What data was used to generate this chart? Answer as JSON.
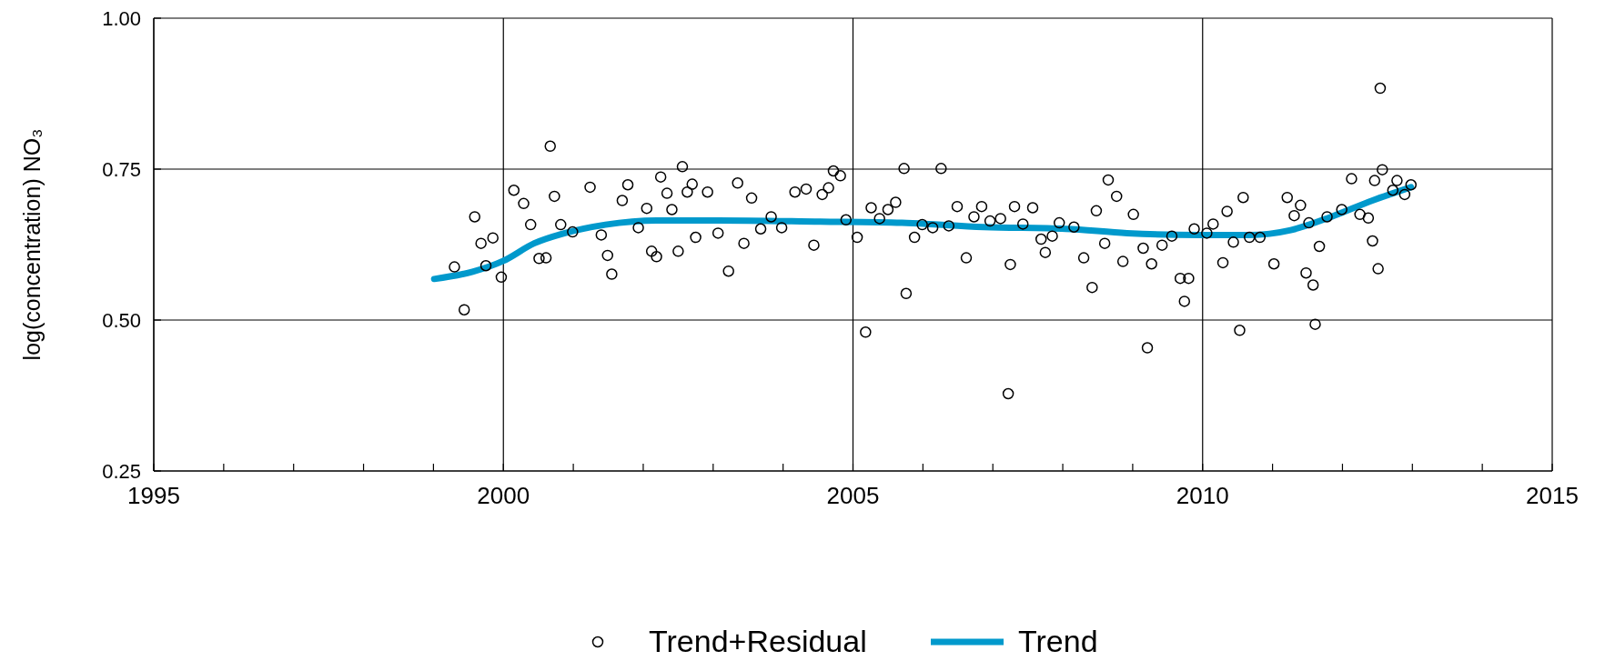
{
  "chart_data": {
    "type": "scatter",
    "ylabel": "log(concentration) NO₃",
    "xlim": [
      1995,
      2015
    ],
    "ylim": [
      0.25,
      1.0
    ],
    "xticks": [
      1995,
      {
        "value": 1996,
        "label": null
      },
      {
        "value": 1997,
        "label": null
      },
      {
        "value": 1998,
        "label": null
      },
      {
        "value": 1999,
        "label": null
      },
      2000,
      {
        "value": 2001,
        "label": null
      },
      {
        "value": 2002,
        "label": null
      },
      {
        "value": 2003,
        "label": null
      },
      {
        "value": 2004,
        "label": null
      },
      2005,
      {
        "value": 2006,
        "label": null
      },
      {
        "value": 2007,
        "label": null
      },
      {
        "value": 2008,
        "label": null
      },
      {
        "value": 2009,
        "label": null
      },
      2010,
      {
        "value": 2011,
        "label": null
      },
      {
        "value": 2012,
        "label": null
      },
      {
        "value": 2013,
        "label": null
      },
      {
        "value": 2014,
        "label": null
      },
      2015
    ],
    "yticks": [
      {
        "value": 0.25,
        "label": "0.25"
      },
      {
        "value": 0.5,
        "label": "0.50"
      },
      {
        "value": 0.75,
        "label": "0.75"
      },
      {
        "value": 1.0,
        "label": "1.00"
      }
    ],
    "grid": true,
    "legend": "bottom",
    "series": [
      {
        "name": "Trend+Residual",
        "color": "#000000",
        "marker": "circle",
        "x": [
          1999.3,
          1999.44,
          1999.59,
          1999.68,
          1999.75,
          1999.85,
          1999.97,
          2000.15,
          2000.29,
          2000.39,
          2000.51,
          2000.61,
          2000.67,
          2000.73,
          2000.82,
          2000.99,
          2001.24,
          2001.4,
          2001.49,
          2001.55,
          2001.7,
          2001.78,
          2001.93,
          2002.05,
          2002.12,
          2002.19,
          2002.25,
          2002.34,
          2002.41,
          2002.5,
          2002.56,
          2002.63,
          2002.7,
          2002.75,
          2002.92,
          2003.07,
          2003.22,
          2003.35,
          2003.44,
          2003.55,
          2003.68,
          2003.83,
          2003.98,
          2004.17,
          2004.33,
          2004.44,
          2004.56,
          2004.65,
          2004.72,
          2004.82,
          2004.9,
          2005.06,
          2005.18,
          2005.26,
          2005.38,
          2005.5,
          2005.61,
          2005.73,
          2005.76,
          2005.88,
          2005.99,
          2006.14,
          2006.26,
          2006.37,
          2006.49,
          2006.62,
          2006.73,
          2006.84,
          2006.96,
          2007.11,
          2007.22,
          2007.25,
          2007.31,
          2007.43,
          2007.57,
          2007.69,
          2007.75,
          2007.85,
          2007.95,
          2008.16,
          2008.3,
          2008.42,
          2008.48,
          2008.6,
          2008.65,
          2008.77,
          2008.86,
          2009.01,
          2009.15,
          2009.21,
          2009.27,
          2009.42,
          2009.56,
          2009.68,
          2009.74,
          2009.8,
          2009.88,
          2010.06,
          2010.15,
          2010.29,
          2010.35,
          2010.44,
          2010.53,
          2010.58,
          2010.67,
          2010.82,
          2011.02,
          2011.21,
          2011.31,
          2011.4,
          2011.48,
          2011.52,
          2011.58,
          2011.61,
          2011.67,
          2011.78,
          2011.99,
          2012.13,
          2012.25,
          2012.37,
          2012.43,
          2012.46,
          2012.51,
          2012.54,
          2012.57,
          2012.72,
          2012.78,
          2012.89,
          2012.98
        ],
        "values": [
          0.588,
          0.517,
          0.671,
          0.627,
          0.59,
          0.636,
          0.571,
          0.715,
          0.693,
          0.658,
          0.602,
          0.603,
          0.788,
          0.705,
          0.658,
          0.646,
          0.72,
          0.641,
          0.607,
          0.576,
          0.698,
          0.724,
          0.653,
          0.685,
          0.614,
          0.605,
          0.737,
          0.71,
          0.683,
          0.614,
          0.754,
          0.712,
          0.725,
          0.637,
          0.712,
          0.644,
          0.581,
          0.727,
          0.627,
          0.702,
          0.651,
          0.671,
          0.653,
          0.712,
          0.717,
          0.624,
          0.708,
          0.719,
          0.747,
          0.739,
          0.666,
          0.637,
          0.48,
          0.686,
          0.668,
          0.683,
          0.695,
          0.751,
          0.544,
          0.637,
          0.658,
          0.653,
          0.751,
          0.656,
          0.688,
          0.603,
          0.671,
          0.688,
          0.664,
          0.668,
          0.378,
          0.592,
          0.688,
          0.659,
          0.686,
          0.634,
          0.612,
          0.639,
          0.661,
          0.654,
          0.603,
          0.554,
          0.681,
          0.627,
          0.732,
          0.705,
          0.597,
          0.675,
          0.619,
          0.454,
          0.593,
          0.624,
          0.639,
          0.569,
          0.531,
          0.569,
          0.651,
          0.644,
          0.659,
          0.595,
          0.68,
          0.629,
          0.483,
          0.703,
          0.637,
          0.637,
          0.593,
          0.703,
          0.673,
          0.69,
          0.578,
          0.661,
          0.558,
          0.493,
          0.622,
          0.671,
          0.683,
          0.734,
          0.675,
          0.669,
          0.631,
          0.731,
          0.585,
          0.884,
          0.749,
          0.715,
          0.731,
          0.708,
          0.724
        ]
      },
      {
        "name": "Trend",
        "type": "line",
        "color": "#0099cc",
        "line_style": "solid",
        "x": [
          1999.01,
          1999.56,
          2000.0,
          2000.44,
          2000.88,
          2001.46,
          2002.19,
          2003.07,
          2004.53,
          2005.7,
          2006.87,
          2008.04,
          2008.92,
          2009.94,
          2010.67,
          2011.26,
          2011.84,
          2012.43,
          2012.98
        ],
        "values": [
          0.568,
          0.58,
          0.598,
          0.627,
          0.644,
          0.658,
          0.665,
          0.665,
          0.663,
          0.661,
          0.654,
          0.651,
          0.644,
          0.641,
          0.641,
          0.649,
          0.671,
          0.698,
          0.72
        ]
      }
    ]
  }
}
